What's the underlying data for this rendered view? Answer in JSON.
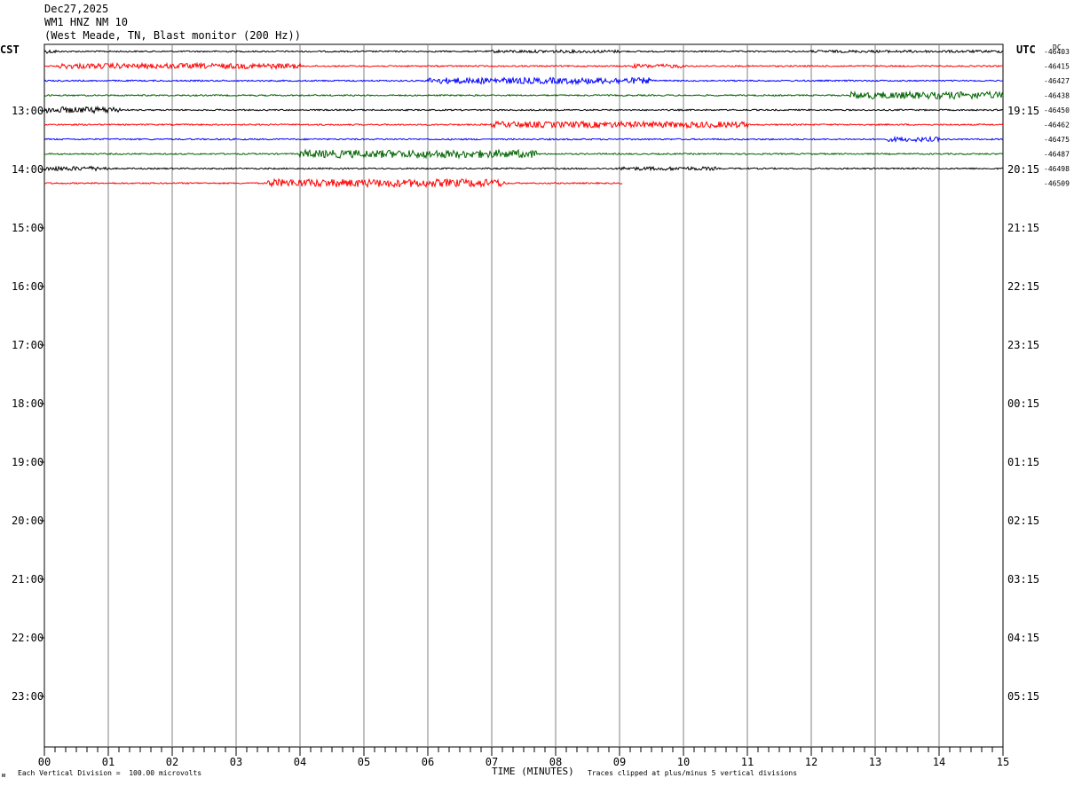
{
  "header": {
    "date": "Dec27,2025",
    "station": "WM1 HNZ NM 10",
    "location": "(West Meade, TN, Blast monitor (200 Hz))"
  },
  "labels": {
    "left_tz": "CST",
    "right_tz": "UTC",
    "dc": "DC"
  },
  "footer": {
    "scale": "Each Vertical Division =  100.00 microvolts",
    "xlabel": "TIME (MINUTES)",
    "clip": "Traces clipped at plus/minus 5 vertical divisions",
    "mark": "ᴍ"
  },
  "chart_data": {
    "type": "line",
    "title": "WM1 HNZ NM 10",
    "xlabel": "TIME (MINUTES)",
    "x_range": [
      0,
      15
    ],
    "x_ticks": [
      "00",
      "01",
      "02",
      "03",
      "04",
      "05",
      "06",
      "07",
      "08",
      "09",
      "10",
      "11",
      "12",
      "13",
      "14",
      "15"
    ],
    "left_hour_labels": [
      "13:00",
      "14:00",
      "15:00",
      "16:00",
      "17:00",
      "18:00",
      "19:00",
      "20:00",
      "21:00",
      "22:00",
      "23:00"
    ],
    "right_hour_labels": [
      "19:15",
      "20:15",
      "21:15",
      "22:15",
      "23:15",
      "00:15",
      "01:15",
      "02:15",
      "03:15",
      "04:15",
      "05:15"
    ],
    "trace_colors": [
      "#000000",
      "#ff0000",
      "#0000ff",
      "#006400"
    ],
    "traces": [
      {
        "dc": "-46403",
        "color": "#000000",
        "end_min": 15,
        "bursts": [
          [
            0,
            0.2,
            2
          ],
          [
            7,
            9,
            1.6
          ],
          [
            12,
            15,
            1.4
          ]
        ]
      },
      {
        "dc": "-46415",
        "color": "#ff0000",
        "end_min": 15,
        "bursts": [
          [
            0.2,
            4,
            3
          ],
          [
            9.2,
            10,
            2.2
          ]
        ]
      },
      {
        "dc": "-46427",
        "color": "#0000ff",
        "end_min": 15,
        "bursts": [
          [
            6,
            9.5,
            3.5
          ]
        ]
      },
      {
        "dc": "-46438",
        "color": "#006400",
        "end_min": 15,
        "bursts": [
          [
            12.6,
            15,
            4
          ]
        ]
      },
      {
        "dc": "-46450",
        "color": "#000000",
        "end_min": 15,
        "bursts": [
          [
            0,
            1.2,
            3.5
          ]
        ]
      },
      {
        "dc": "-46462",
        "color": "#ff0000",
        "end_min": 15,
        "bursts": [
          [
            7,
            11,
            3.5
          ]
        ]
      },
      {
        "dc": "-46475",
        "color": "#0000ff",
        "end_min": 15,
        "bursts": [
          [
            13.2,
            14,
            2.5
          ]
        ]
      },
      {
        "dc": "-46487",
        "color": "#006400",
        "end_min": 15,
        "bursts": [
          [
            4,
            7.7,
            4.5
          ]
        ]
      },
      {
        "dc": "-46498",
        "color": "#000000",
        "end_min": 15,
        "bursts": [
          [
            0,
            1,
            2.5
          ],
          [
            9,
            10.5,
            2
          ]
        ]
      },
      {
        "dc": "-46509",
        "color": "#ff0000",
        "end_min": 9.05,
        "bursts": [
          [
            3.5,
            7.2,
            4.5
          ]
        ]
      }
    ],
    "dc_offsets": [
      "-46403",
      "-46415",
      "-46427",
      "-46438",
      "-46450",
      "-46462",
      "-46475",
      "-46487",
      "-46498",
      "-46509"
    ],
    "grid": true
  }
}
